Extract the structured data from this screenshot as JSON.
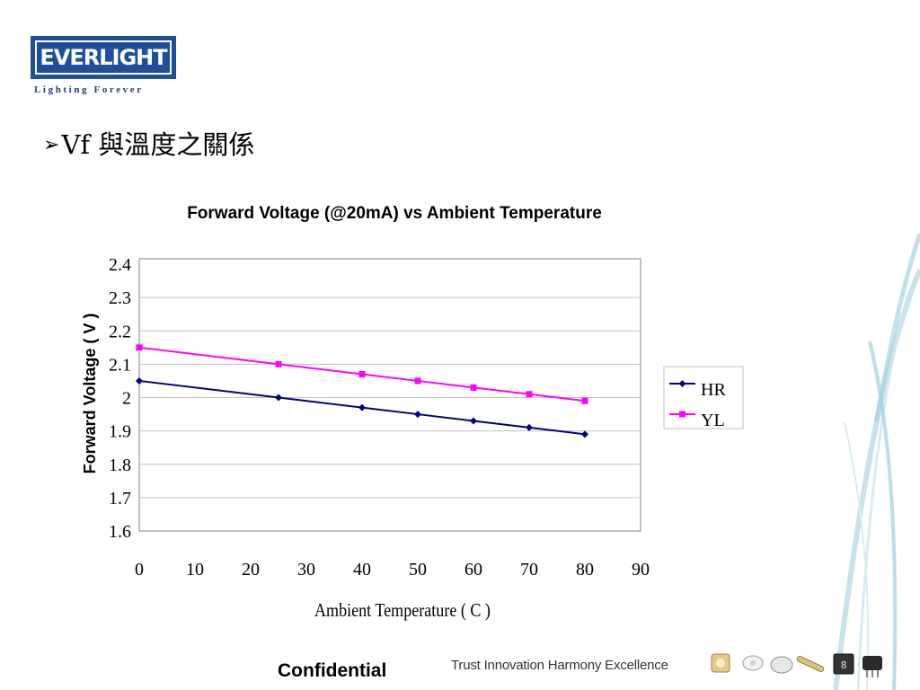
{
  "logo": {
    "brand": "EVERLIGHT",
    "tagline": "Lighting Forever"
  },
  "slide": {
    "heading": "Vf 與溫度之關係",
    "bullet_glyph": "➢"
  },
  "footer": {
    "confidential": "Confidential",
    "motto": "Trust Innovation Harmony Excellence"
  },
  "colors": {
    "HR": "#000080",
    "YL": "#ff00ff",
    "logo_blue": "#1f4e9b",
    "grid": "#c0c0c0"
  },
  "chart_data": {
    "type": "line",
    "title": "Forward Voltage (@20mA) vs Ambient Temperature",
    "xlabel": "Ambient Temperature ( C )",
    "ylabel": "Forward Voltage ( V )",
    "xlim": [
      0,
      90
    ],
    "ylim": [
      1.6,
      2.4
    ],
    "xticks": [
      "0",
      "10",
      "20",
      "30",
      "40",
      "50",
      "60",
      "70",
      "80",
      "90"
    ],
    "yticks": [
      "2.4",
      "2.3",
      "2.2",
      "2.1",
      "2",
      "1.9",
      "1.8",
      "1.7",
      "1.6"
    ],
    "grid": "horizontal",
    "legend_position": "right",
    "x": [
      0,
      25,
      40,
      50,
      60,
      70,
      80
    ],
    "series": [
      {
        "name": "HR",
        "marker": "diamond",
        "values": [
          2.05,
          2.0,
          1.97,
          1.95,
          1.93,
          1.91,
          1.89
        ]
      },
      {
        "name": "YL",
        "marker": "square",
        "values": [
          2.15,
          2.1,
          2.07,
          2.05,
          2.03,
          2.01,
          1.99
        ]
      }
    ]
  }
}
